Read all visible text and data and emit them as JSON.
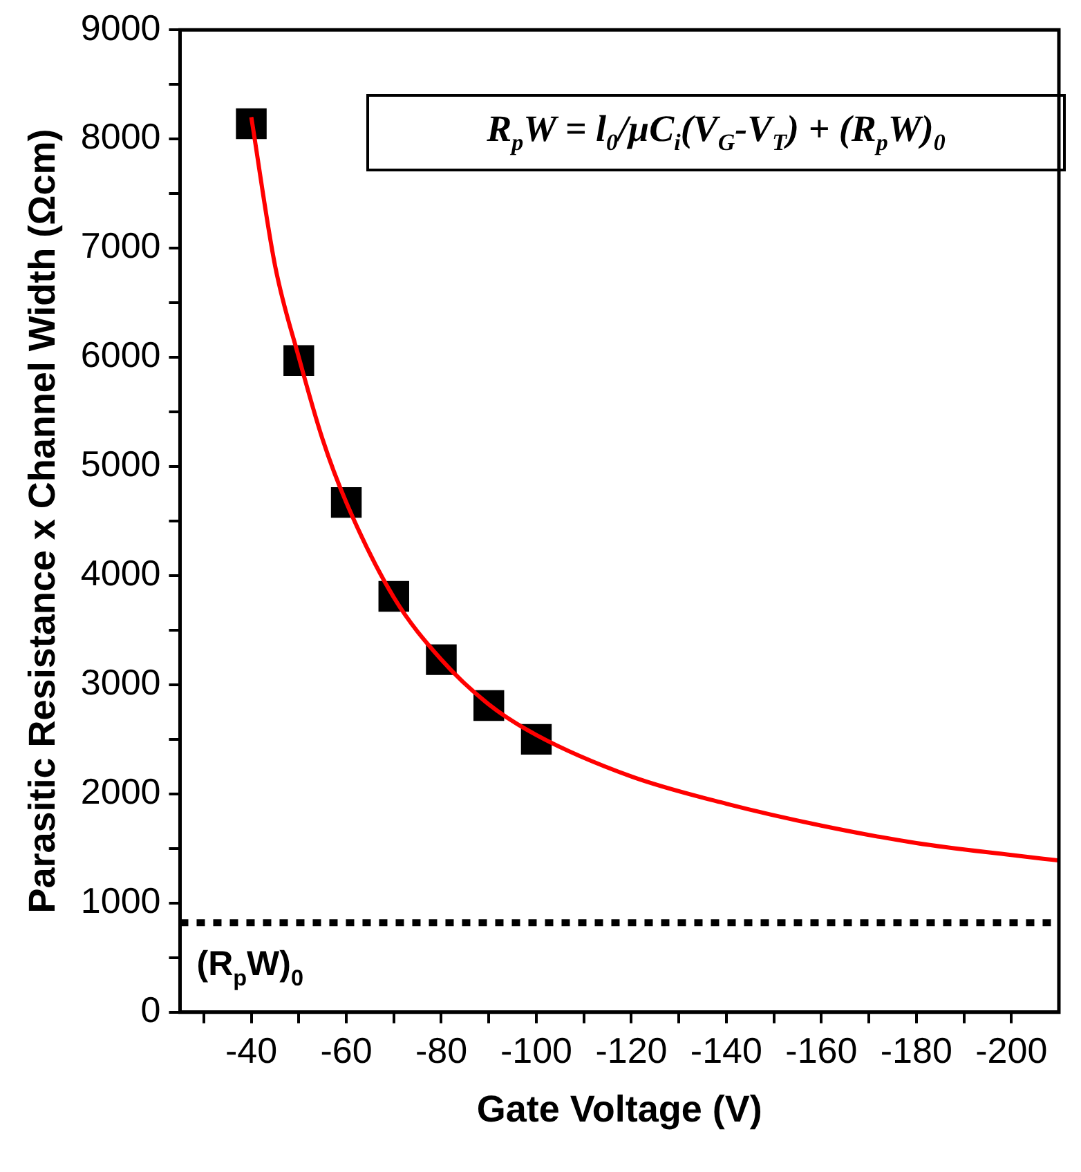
{
  "chart_data": {
    "type": "scatter",
    "xlabel": "Gate Voltage (V)",
    "ylabel": "Parasitic Resistance x Channel Width (Ωcm)",
    "x": [
      -40,
      -50,
      -60,
      -70,
      -80,
      -90,
      -100
    ],
    "series": [
      {
        "color": "#000000",
        "marker": "square",
        "values": [
          8140,
          5970,
          4670,
          3810,
          3230,
          2810,
          2500
        ]
      },
      {
        "type": "line",
        "color": "#ff0000",
        "marker": "none",
        "line_style": "solid",
        "x": [
          -40,
          -45,
          -50,
          -55,
          -60,
          -70,
          -80,
          -90,
          -100,
          -120,
          -140,
          -160,
          -180,
          -200,
          -210
        ],
        "values": [
          8200,
          6840,
          6000,
          5250,
          4670,
          3800,
          3230,
          2820,
          2540,
          2160,
          1910,
          1710,
          1550,
          1440,
          1390
        ]
      }
    ],
    "xlim": [
      -25,
      -210
    ],
    "xticks": [
      {
        "value": -30,
        "label": null
      },
      -40,
      {
        "value": -50,
        "label": null
      },
      -60,
      {
        "value": -70,
        "label": null
      },
      -80,
      {
        "value": -90,
        "label": null
      },
      -100,
      {
        "value": -110,
        "label": null
      },
      -120,
      {
        "value": -130,
        "label": null
      },
      -140,
      {
        "value": -150,
        "label": null
      },
      -160,
      {
        "value": -170,
        "label": null
      },
      -180,
      {
        "value": -190,
        "label": null
      },
      -200
    ],
    "ylim": [
      0,
      9000
    ],
    "yticks": [
      0,
      {
        "value": 500,
        "label": null
      },
      1000,
      {
        "value": 1500,
        "label": null
      },
      2000,
      {
        "value": 2500,
        "label": null
      },
      3000,
      {
        "value": 3500,
        "label": null
      },
      4000,
      {
        "value": 4500,
        "label": null
      },
      5000,
      {
        "value": 5500,
        "label": null
      },
      6000,
      {
        "value": 6500,
        "label": null
      },
      7000,
      {
        "value": 7500,
        "label": null
      },
      8000,
      {
        "value": 8500,
        "label": null
      },
      9000
    ],
    "ref_lines": [
      {
        "axis": "y",
        "value": 820,
        "label": "(R$_{p}$W)$_{0}$",
        "color": "#000000",
        "line_style": "dotted"
      }
    ],
    "annotations": [
      "R$_{p}$W = l$_{0}$/μC$_{i}$(V$_{G}$-V$_{T}$) + (R$_{p}$W)$_{0}$"
    ],
    "grid": false,
    "legend": false
  }
}
